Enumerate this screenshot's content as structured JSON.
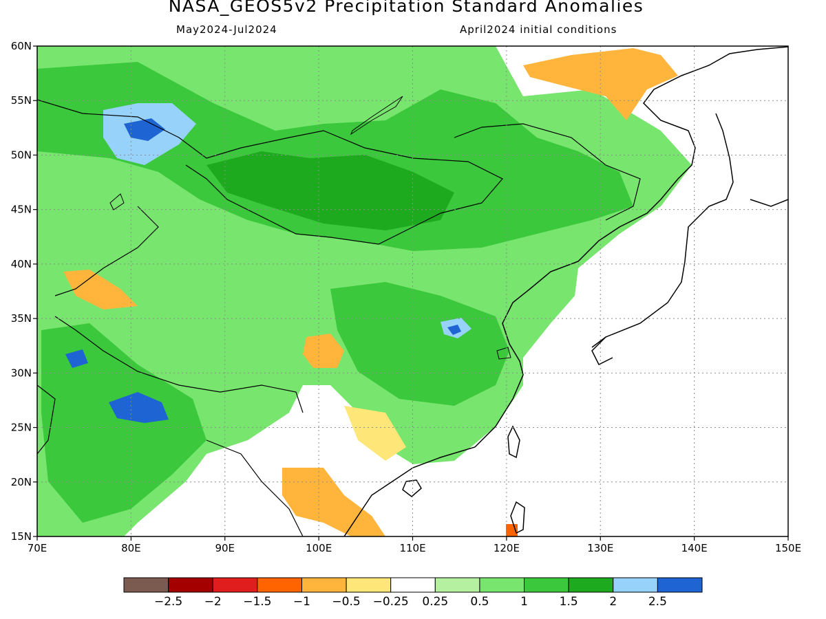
{
  "title": "NASA_GEOS5v2 Precipitation Standard Anomalies",
  "subtitle_left": "May2024-Jul2024",
  "subtitle_right": "April2024 initial conditions",
  "map": {
    "lon_range": [
      70,
      150
    ],
    "lat_range": [
      15,
      60
    ],
    "x_ticks": [
      "70E",
      "80E",
      "90E",
      "100E",
      "110E",
      "120E",
      "130E",
      "140E",
      "150E"
    ],
    "y_ticks": [
      "15N",
      "20N",
      "25N",
      "30N",
      "35N",
      "40N",
      "45N",
      "50N",
      "55N",
      "60N"
    ]
  },
  "colorbar": {
    "colors": [
      "#7b5a4f",
      "#a50000",
      "#e01e1e",
      "#ff6400",
      "#ffb43c",
      "#ffe678",
      "#ffffff",
      "#b4f0a0",
      "#78e66e",
      "#3cc83c",
      "#1eaa1e",
      "#96d2fa",
      "#1e64d2"
    ],
    "labels": [
      "-2.5",
      "-2",
      "-1.5",
      "-1",
      "-0.5",
      "-0.25",
      "0.25",
      "0.5",
      "1",
      "1.5",
      "2",
      "2.5"
    ]
  }
}
